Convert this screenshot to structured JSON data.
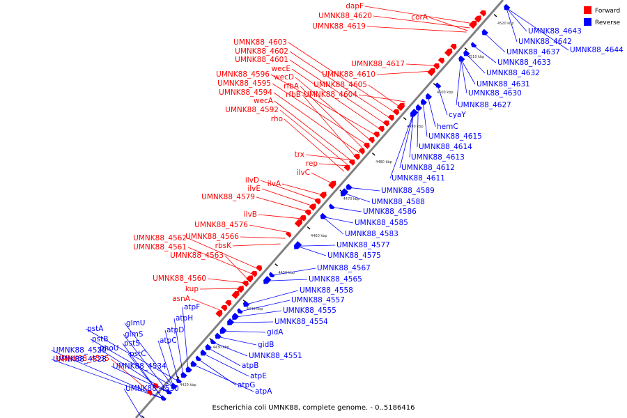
{
  "caption": "Escherichia coli UMNK88, complete genome. - 0..5186416",
  "legend": [
    {
      "label": "Forward",
      "color": "#ff0000"
    },
    {
      "label": "Reverse",
      "color": "#0000ff"
    }
  ],
  "colors": {
    "forward": "#ff0000",
    "reverse": "#0000ff",
    "backbone": "#808080"
  },
  "ticks": [
    "4410 kbp",
    "4420 kbp",
    "4430 kbp",
    "4440 kbp",
    "4450 kbp",
    "4460 kbp",
    "4470 kbp",
    "4480 kbp",
    "4490 kbp",
    "4500 kbp",
    "4510 kbp",
    "4520 kbp"
  ],
  "forward_labels": [
    "dapF",
    "UMNK88_4620",
    "UMNK88_4619",
    "corA",
    "UMNK88_4603",
    "UMNK88_4602",
    "UMNK88_4601",
    "wecE",
    "UMNK88_4617",
    "UMNK88_4596",
    "wecD",
    "UMNK88_4610",
    "UMNK88_4595",
    "rfbA",
    "UMNK88_4605",
    "UMNK88_4594",
    "rfbB",
    "UMNK88_4604",
    "wecA",
    "UMNK88_4592",
    "rho",
    "trx",
    "rep",
    "ilvC",
    "ilvD",
    "ilvA",
    "ilvE",
    "UMNK88_4579",
    "ilvB",
    "UMNK88_4576",
    "UMNK88_4562",
    "UMNK88_4566",
    "UMNK88_4561",
    "rbsK",
    "UMNK88_4563",
    "UMNK88_4560",
    "kup",
    "asnA",
    "UMNK88_4535"
  ],
  "reverse_labels": [
    "UMNK88_4643",
    "UMNK88_4642",
    "UMNK88_4644",
    "UMNK88_4637",
    "UMNK88_4633",
    "UMNK88_4632",
    "UMNK88_4631",
    "UMNK88_4630",
    "UMNK88_4627",
    "cyaY",
    "hemC",
    "UMNK88_4615",
    "UMNK88_4614",
    "UMNK88_4613",
    "UMNK88_4612",
    "UMNK88_4611",
    "UMNK88_4589",
    "UMNK88_4588",
    "UMNK88_4586",
    "UMNK88_4585",
    "UMNK88_4583",
    "UMNK88_4577",
    "UMNK88_4575",
    "UMNK88_4567",
    "UMNK88_4565",
    "UMNK88_4558",
    "UMNK88_4557",
    "UMNK88_4555",
    "UMNK88_4554",
    "gidA",
    "gidB",
    "UMNK88_4551",
    "atpB",
    "atpE",
    "atpG",
    "atpA",
    "atpF",
    "atpH",
    "atpD",
    "atpC",
    "glmU",
    "glmS",
    "pstS",
    "pstC",
    "pstA",
    "pstB",
    "phoU",
    "UMNK88_4529",
    "UMNK88_4528",
    "UMNK88_4534",
    "UMNK88_4530"
  ]
}
